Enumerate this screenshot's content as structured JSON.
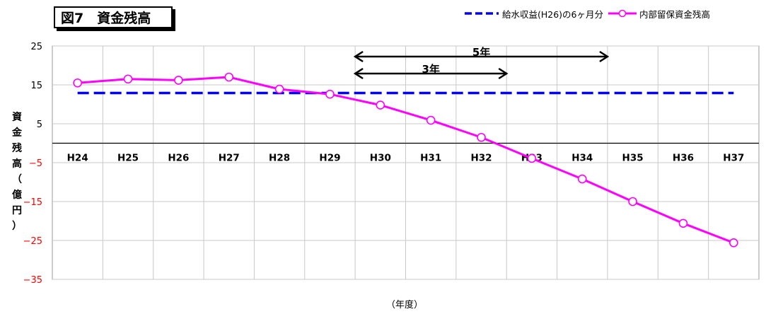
{
  "chart_data": {
    "type": "line",
    "title": "図7　資金残高",
    "xlabel": "（年度）",
    "ylabel": "資金残高（億円）",
    "ylim": [
      -35,
      25
    ],
    "yticks": [
      25,
      15,
      5,
      -5,
      -15,
      -25,
      -35
    ],
    "categories": [
      "H24",
      "H25",
      "H26",
      "H27",
      "H28",
      "H29",
      "H30",
      "H31",
      "H32",
      "H33",
      "H34",
      "H35",
      "H36",
      "H37"
    ],
    "grid": true,
    "legend_position": "top-right",
    "series": [
      {
        "name": "給水収益(H26)の6ヶ月分",
        "style": "dashed",
        "color": "#0000ff",
        "values": [
          12.9,
          12.9,
          12.9,
          12.9,
          12.9,
          12.9,
          12.9,
          12.9,
          12.9,
          12.9,
          12.9,
          12.9,
          12.9,
          12.9
        ]
      },
      {
        "name": "内部留保資金残高",
        "style": "solid-circle-markers",
        "color": "#ff00ff",
        "values": [
          15.5,
          16.5,
          16.2,
          17.0,
          13.9,
          12.6,
          9.8,
          5.9,
          1.5,
          -3.9,
          -9.2,
          -15.0,
          -20.6,
          -25.6
        ]
      }
    ],
    "annotations": [
      {
        "label": "5年",
        "from": "H30",
        "to": "H35"
      },
      {
        "label": "3年",
        "from": "H30",
        "to": "H33"
      }
    ],
    "negative_tick_color": "#ff0000"
  }
}
